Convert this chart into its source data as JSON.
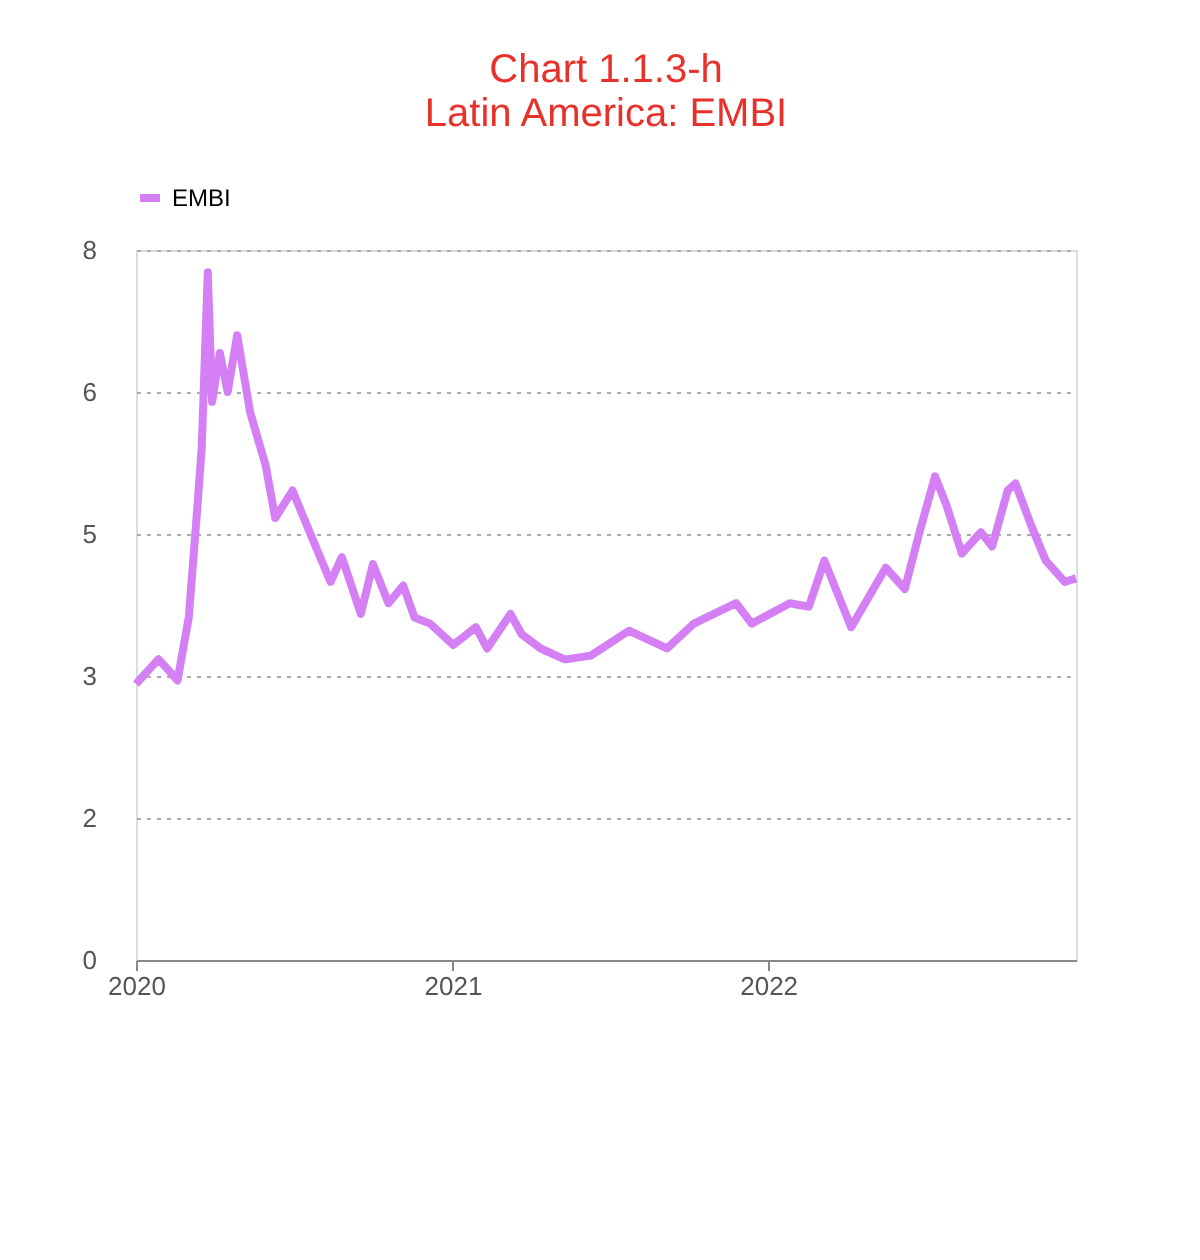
{
  "chart_data": {
    "type": "line",
    "title": "Chart 1.1.3-h\nLatin America: EMBI",
    "x": [
      "2020-01-01",
      "2020-01-27",
      "2020-02-18",
      "2020-03-02",
      "2020-03-11",
      "2020-03-17",
      "2020-03-24",
      "2020-03-29",
      "2020-04-07",
      "2020-04-16",
      "2020-04-27",
      "2020-05-12",
      "2020-05-30",
      "2020-06-10",
      "2020-06-30",
      "2020-07-13",
      "2020-08-13",
      "2020-08-26",
      "2020-09-17",
      "2020-10-01",
      "2020-10-19",
      "2020-11-05",
      "2020-11-18",
      "2020-12-06",
      "2021-01-02",
      "2021-01-28",
      "2021-02-10",
      "2021-03-09",
      "2021-03-22",
      "2021-04-13",
      "2021-05-10",
      "2021-05-14",
      "2021-06-10",
      "2021-07-24",
      "2021-09-06",
      "2021-10-07",
      "2021-11-25",
      "2021-12-13",
      "2022-01-26",
      "2022-02-17",
      "2022-03-07",
      "2022-04-07",
      "2022-05-17",
      "2022-06-08",
      "2022-06-25",
      "2022-07-13",
      "2022-07-26",
      "2022-08-13",
      "2022-09-04",
      "2022-09-17",
      "2022-10-05",
      "2022-10-14",
      "2022-11-01",
      "2022-11-18",
      "2022-12-10",
      "2022-12-23"
    ],
    "series": [
      {
        "name": "EMBI",
        "color": "#d57ff5",
        "values": [
          3.11,
          3.39,
          3.15,
          3.86,
          4.98,
          5.77,
          7.75,
          6.29,
          6.84,
          6.4,
          7.04,
          6.17,
          5.57,
          4.98,
          5.29,
          4.98,
          4.26,
          4.54,
          3.9,
          4.46,
          4.02,
          4.22,
          3.86,
          3.79,
          3.55,
          3.75,
          3.51,
          3.9,
          3.67,
          3.51,
          3.39,
          3.39,
          3.43,
          3.71,
          3.51,
          3.79,
          4.02,
          3.79,
          4.02,
          3.98,
          4.5,
          3.75,
          4.42,
          4.18,
          4.82,
          5.45,
          5.13,
          4.58,
          4.82,
          4.66,
          5.29,
          5.37,
          4.9,
          4.5,
          4.26,
          4.3
        ]
      }
    ],
    "xlim": [
      "2020-01-01",
      "2022-12-23"
    ],
    "xticks": [
      {
        "value": "2020-01-01",
        "label": "2020"
      },
      {
        "value": "2021-01-01",
        "label": "2021"
      },
      {
        "value": "2022-01-01",
        "label": "2022"
      }
    ],
    "ylim": [
      0,
      8
    ],
    "yticks": [
      0,
      {
        "value": 1.6,
        "label": "2"
      },
      {
        "value": 3.2,
        "label": "3"
      },
      {
        "value": 4.8,
        "label": "5"
      },
      {
        "value": 6.4,
        "label": "6"
      },
      8
    ],
    "grid": "y",
    "legend": "top",
    "line_style": "solid",
    "marker": "none"
  }
}
